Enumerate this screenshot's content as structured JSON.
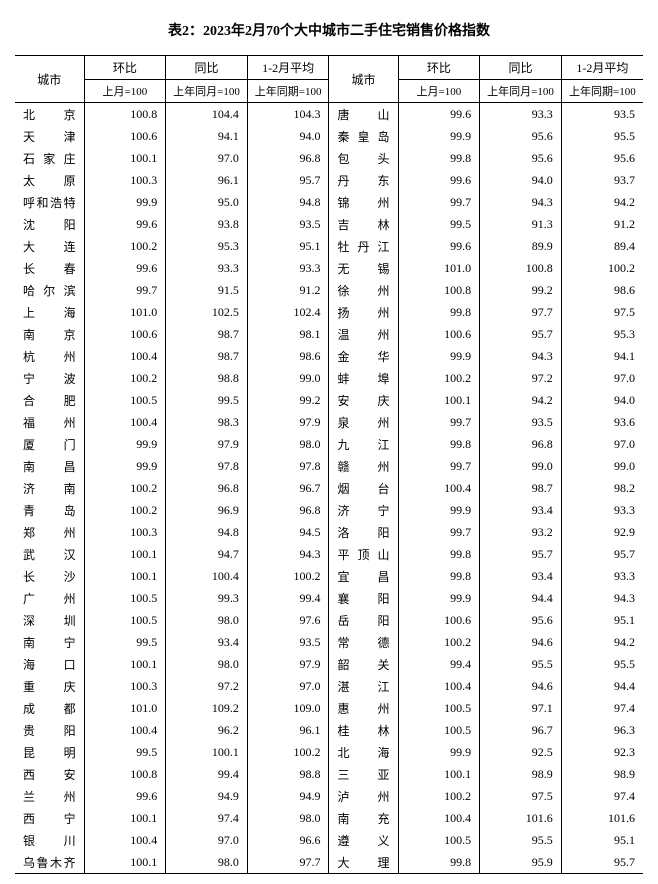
{
  "title": "表2：2023年2月70个大中城市二手住宅销售价格指数",
  "headers": {
    "city": "城市",
    "mom": "环比",
    "yoy": "同比",
    "avg": "1-2月平均",
    "mom_sub": "上月=100",
    "yoy_sub": "上年同月=100",
    "avg_sub": "上年同期=100"
  },
  "columns": {
    "city_width_pct": 11,
    "data_width_pct": 13
  },
  "style": {
    "font_family": "SimSun, 宋体, serif",
    "title_fontsize": 14,
    "body_fontsize": 12,
    "sub_fontsize": 11,
    "background_color": "#ffffff",
    "text_color": "#000000",
    "border_color": "#000000"
  },
  "rows_left": [
    {
      "city": "北　　京",
      "mom": "100.8",
      "yoy": "104.4",
      "avg": "104.3"
    },
    {
      "city": "天　　津",
      "mom": "100.6",
      "yoy": "94.1",
      "avg": "94.0"
    },
    {
      "city": "石 家 庄",
      "mom": "100.1",
      "yoy": "97.0",
      "avg": "96.8"
    },
    {
      "city": "太　　原",
      "mom": "100.3",
      "yoy": "96.1",
      "avg": "95.7"
    },
    {
      "city": "呼和浩特",
      "mom": "99.9",
      "yoy": "95.0",
      "avg": "94.8"
    },
    {
      "city": "沈　　阳",
      "mom": "99.6",
      "yoy": "93.8",
      "avg": "93.5"
    },
    {
      "city": "大　　连",
      "mom": "100.2",
      "yoy": "95.3",
      "avg": "95.1"
    },
    {
      "city": "长　　春",
      "mom": "99.6",
      "yoy": "93.3",
      "avg": "93.3"
    },
    {
      "city": "哈 尔 滨",
      "mom": "99.7",
      "yoy": "91.5",
      "avg": "91.2"
    },
    {
      "city": "上　　海",
      "mom": "101.0",
      "yoy": "102.5",
      "avg": "102.4"
    },
    {
      "city": "南　　京",
      "mom": "100.6",
      "yoy": "98.7",
      "avg": "98.1"
    },
    {
      "city": "杭　　州",
      "mom": "100.4",
      "yoy": "98.7",
      "avg": "98.6"
    },
    {
      "city": "宁　　波",
      "mom": "100.2",
      "yoy": "98.8",
      "avg": "99.0"
    },
    {
      "city": "合　　肥",
      "mom": "100.5",
      "yoy": "99.5",
      "avg": "99.2"
    },
    {
      "city": "福　　州",
      "mom": "100.4",
      "yoy": "98.3",
      "avg": "97.9"
    },
    {
      "city": "厦　　门",
      "mom": "99.9",
      "yoy": "97.9",
      "avg": "98.0"
    },
    {
      "city": "南　　昌",
      "mom": "99.9",
      "yoy": "97.8",
      "avg": "97.8"
    },
    {
      "city": "济　　南",
      "mom": "100.2",
      "yoy": "96.8",
      "avg": "96.7"
    },
    {
      "city": "青　　岛",
      "mom": "100.2",
      "yoy": "96.9",
      "avg": "96.8"
    },
    {
      "city": "郑　　州",
      "mom": "100.3",
      "yoy": "94.8",
      "avg": "94.5"
    },
    {
      "city": "武　　汉",
      "mom": "100.1",
      "yoy": "94.7",
      "avg": "94.3"
    },
    {
      "city": "长　　沙",
      "mom": "100.1",
      "yoy": "100.4",
      "avg": "100.2"
    },
    {
      "city": "广　　州",
      "mom": "100.5",
      "yoy": "99.3",
      "avg": "99.4"
    },
    {
      "city": "深　　圳",
      "mom": "100.5",
      "yoy": "98.0",
      "avg": "97.6"
    },
    {
      "city": "南　　宁",
      "mom": "99.5",
      "yoy": "93.4",
      "avg": "93.5"
    },
    {
      "city": "海　　口",
      "mom": "100.1",
      "yoy": "98.0",
      "avg": "97.9"
    },
    {
      "city": "重　　庆",
      "mom": "100.3",
      "yoy": "97.2",
      "avg": "97.0"
    },
    {
      "city": "成　　都",
      "mom": "101.0",
      "yoy": "109.2",
      "avg": "109.0"
    },
    {
      "city": "贵　　阳",
      "mom": "100.4",
      "yoy": "96.2",
      "avg": "96.1"
    },
    {
      "city": "昆　　明",
      "mom": "99.5",
      "yoy": "100.1",
      "avg": "100.2"
    },
    {
      "city": "西　　安",
      "mom": "100.8",
      "yoy": "99.4",
      "avg": "98.8"
    },
    {
      "city": "兰　　州",
      "mom": "99.6",
      "yoy": "94.9",
      "avg": "94.9"
    },
    {
      "city": "西　　宁",
      "mom": "100.1",
      "yoy": "97.4",
      "avg": "98.0"
    },
    {
      "city": "银　　川",
      "mom": "100.4",
      "yoy": "97.0",
      "avg": "96.6"
    },
    {
      "city": "乌鲁木齐",
      "mom": "100.1",
      "yoy": "98.0",
      "avg": "97.7"
    }
  ],
  "rows_right": [
    {
      "city": "唐　　山",
      "mom": "99.6",
      "yoy": "93.3",
      "avg": "93.5"
    },
    {
      "city": "秦 皇 岛",
      "mom": "99.9",
      "yoy": "95.6",
      "avg": "95.5"
    },
    {
      "city": "包　　头",
      "mom": "99.8",
      "yoy": "95.6",
      "avg": "95.6"
    },
    {
      "city": "丹　　东",
      "mom": "99.6",
      "yoy": "94.0",
      "avg": "93.7"
    },
    {
      "city": "锦　　州",
      "mom": "99.7",
      "yoy": "94.3",
      "avg": "94.2"
    },
    {
      "city": "吉　　林",
      "mom": "99.5",
      "yoy": "91.3",
      "avg": "91.2"
    },
    {
      "city": "牡 丹 江",
      "mom": "99.6",
      "yoy": "89.9",
      "avg": "89.4"
    },
    {
      "city": "无　　锡",
      "mom": "101.0",
      "yoy": "100.8",
      "avg": "100.2"
    },
    {
      "city": "徐　　州",
      "mom": "100.8",
      "yoy": "99.2",
      "avg": "98.6"
    },
    {
      "city": "扬　　州",
      "mom": "99.8",
      "yoy": "97.7",
      "avg": "97.5"
    },
    {
      "city": "温　　州",
      "mom": "100.6",
      "yoy": "95.7",
      "avg": "95.3"
    },
    {
      "city": "金　　华",
      "mom": "99.9",
      "yoy": "94.3",
      "avg": "94.1"
    },
    {
      "city": "蚌　　埠",
      "mom": "100.2",
      "yoy": "97.2",
      "avg": "97.0"
    },
    {
      "city": "安　　庆",
      "mom": "100.1",
      "yoy": "94.2",
      "avg": "94.0"
    },
    {
      "city": "泉　　州",
      "mom": "99.7",
      "yoy": "93.5",
      "avg": "93.6"
    },
    {
      "city": "九　　江",
      "mom": "99.8",
      "yoy": "96.8",
      "avg": "97.0"
    },
    {
      "city": "赣　　州",
      "mom": "99.7",
      "yoy": "99.0",
      "avg": "99.0"
    },
    {
      "city": "烟　　台",
      "mom": "100.4",
      "yoy": "98.7",
      "avg": "98.2"
    },
    {
      "city": "济　　宁",
      "mom": "99.9",
      "yoy": "93.4",
      "avg": "93.3"
    },
    {
      "city": "洛　　阳",
      "mom": "99.7",
      "yoy": "93.2",
      "avg": "92.9"
    },
    {
      "city": "平 顶 山",
      "mom": "99.8",
      "yoy": "95.7",
      "avg": "95.7"
    },
    {
      "city": "宜　　昌",
      "mom": "99.8",
      "yoy": "93.4",
      "avg": "93.3"
    },
    {
      "city": "襄　　阳",
      "mom": "99.9",
      "yoy": "94.4",
      "avg": "94.3"
    },
    {
      "city": "岳　　阳",
      "mom": "100.6",
      "yoy": "95.6",
      "avg": "95.1"
    },
    {
      "city": "常　　德",
      "mom": "100.2",
      "yoy": "94.6",
      "avg": "94.2"
    },
    {
      "city": "韶　　关",
      "mom": "99.4",
      "yoy": "95.5",
      "avg": "95.5"
    },
    {
      "city": "湛　　江",
      "mom": "100.4",
      "yoy": "94.6",
      "avg": "94.4"
    },
    {
      "city": "惠　　州",
      "mom": "100.5",
      "yoy": "97.1",
      "avg": "97.4"
    },
    {
      "city": "桂　　林",
      "mom": "100.5",
      "yoy": "96.7",
      "avg": "96.3"
    },
    {
      "city": "北　　海",
      "mom": "99.9",
      "yoy": "92.5",
      "avg": "92.3"
    },
    {
      "city": "三　　亚",
      "mom": "100.1",
      "yoy": "98.9",
      "avg": "98.9"
    },
    {
      "city": "泸　　州",
      "mom": "100.2",
      "yoy": "97.5",
      "avg": "97.4"
    },
    {
      "city": "南　　充",
      "mom": "100.4",
      "yoy": "101.6",
      "avg": "101.6"
    },
    {
      "city": "遵　　义",
      "mom": "100.5",
      "yoy": "95.5",
      "avg": "95.1"
    },
    {
      "city": "大　　理",
      "mom": "99.8",
      "yoy": "95.9",
      "avg": "95.7"
    }
  ]
}
